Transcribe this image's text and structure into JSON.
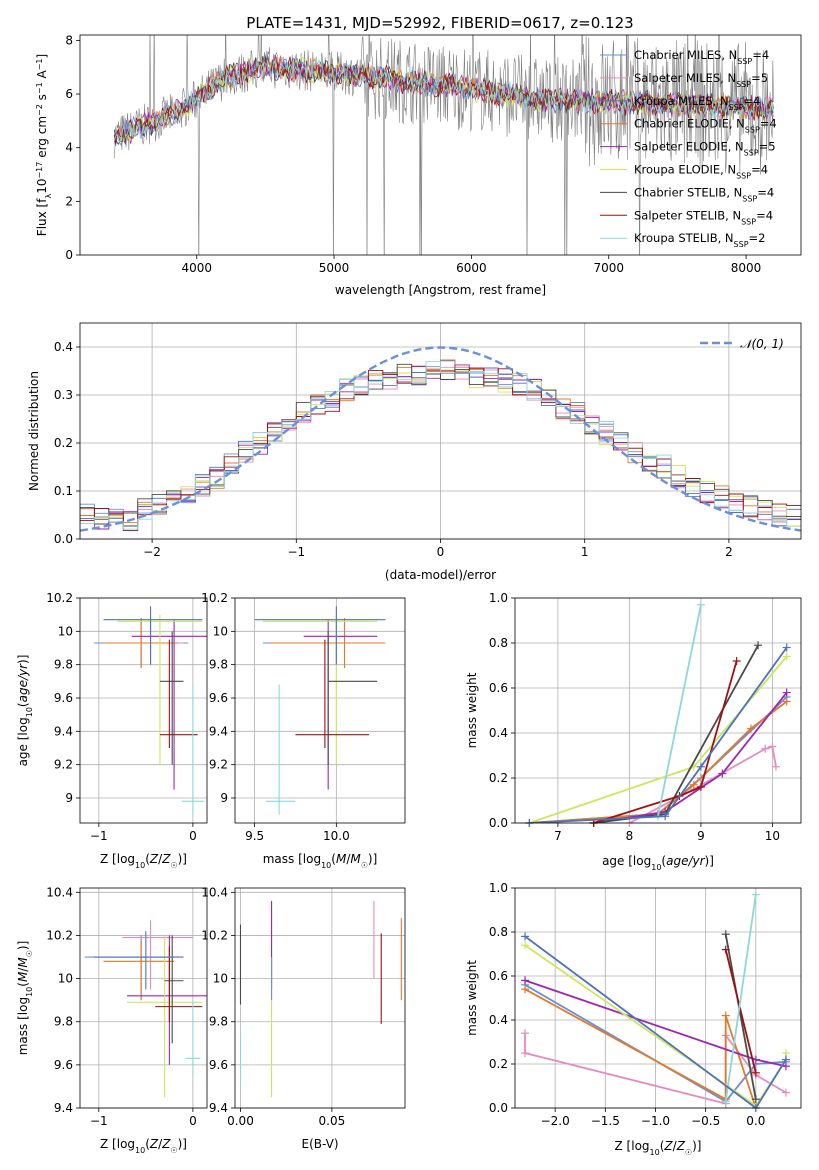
{
  "title": "PLATE=1431, MJD=52992, FIBERID=0617, z=0.123",
  "colors": {
    "Chabrier MILES": "#6a8fdc",
    "Salpeter MILES": "#e68bbd",
    "Kroupa MILES": "#4c72c0",
    "Chabrier ELODIE": "#e07b2a",
    "Salpeter ELODIE": "#9e25b5",
    "Kroupa ELODIE": "#cbe85a",
    "Chabrier STELIB": "#4a4a4a",
    "Salpeter STELIB": "#a01010",
    "Kroupa STELIB": "#8ad8de",
    "normal": "#6a8fdc",
    "data": "#7f7f7f"
  },
  "legend": [
    {
      "name": "Chabrier MILES",
      "nssp": "4"
    },
    {
      "name": "Salpeter MILES",
      "nssp": "5"
    },
    {
      "name": "Kroupa MILES",
      "nssp": "4"
    },
    {
      "name": "Chabrier ELODIE",
      "nssp": "4"
    },
    {
      "name": "Salpeter ELODIE",
      "nssp": "5"
    },
    {
      "name": "Kroupa ELODIE",
      "nssp": "4"
    },
    {
      "name": "Chabrier STELIB",
      "nssp": "4"
    },
    {
      "name": "Salpeter STELIB",
      "nssp": "4"
    },
    {
      "name": "Kroupa STELIB",
      "nssp": "2"
    }
  ],
  "chart_data": [
    {
      "id": "spectrum",
      "type": "line",
      "xlabel": "wavelength [Angstrom, rest frame]",
      "ylabel_parts": [
        "Flux [f",
        "λ",
        "10",
        "−17",
        " erg cm",
        "−2",
        " s",
        "−1",
        " A",
        "−1",
        "]"
      ],
      "xlim": [
        3150,
        8400
      ],
      "ylim": [
        0,
        8.2
      ],
      "xticks": [
        4000,
        5000,
        6000,
        7000,
        8000
      ],
      "yticks": [
        0,
        2,
        4,
        6,
        8
      ],
      "model_continuum": {
        "x": [
          3400,
          3550,
          3700,
          3850,
          4000,
          4200,
          4500,
          5000,
          5500,
          6000,
          6500,
          7000,
          7500,
          8000,
          8200
        ],
        "y": [
          4.4,
          4.7,
          5.0,
          5.3,
          5.8,
          6.6,
          7.0,
          6.8,
          6.5,
          6.2,
          5.8,
          5.7,
          5.6,
          5.5,
          5.4
        ]
      }
    },
    {
      "id": "residual-histogram",
      "type": "bar",
      "xlabel": "(data-model)/error",
      "ylabel": "Normed distribution",
      "xlim": [
        -2.5,
        2.5
      ],
      "ylim": [
        0,
        0.45
      ],
      "xticks": [
        -2,
        -1,
        0,
        1,
        2
      ],
      "xtick_labels": [
        "−2",
        "−1",
        "0",
        "1",
        "2"
      ],
      "yticks": [
        0.0,
        0.1,
        0.2,
        0.3,
        0.4
      ],
      "ytick_labels": [
        "0.0",
        "0.1",
        "0.2",
        "0.3",
        "0.4"
      ],
      "bin_edges": [
        -2.5,
        2.5
      ],
      "n_bins": 50,
      "reference_curve": "𝒩(0, 1)",
      "series_values": [
        0.05,
        0.04,
        0.05,
        0.04,
        0.06,
        0.07,
        0.08,
        0.09,
        0.11,
        0.13,
        0.16,
        0.18,
        0.2,
        0.22,
        0.24,
        0.26,
        0.28,
        0.29,
        0.31,
        0.32,
        0.33,
        0.33,
        0.34,
        0.34,
        0.35,
        0.35,
        0.35,
        0.34,
        0.34,
        0.33,
        0.32,
        0.31,
        0.29,
        0.27,
        0.26,
        0.24,
        0.22,
        0.2,
        0.18,
        0.16,
        0.15,
        0.13,
        0.11,
        0.1,
        0.09,
        0.08,
        0.07,
        0.06,
        0.05,
        0.05
      ]
    },
    {
      "id": "age-vs-z",
      "type": "scatter",
      "xlabel": "Z [log10(Z/Z☉)]",
      "ylabel": "age [log10(age/yr)]",
      "xlim": [
        -1.2,
        0.15
      ],
      "ylim": [
        8.85,
        10.2
      ],
      "xticks": [
        -1,
        0
      ],
      "xtick_labels": [
        "−1",
        "0"
      ],
      "yticks": [
        9.0,
        9.2,
        9.4,
        9.6,
        9.8,
        10.0,
        10.2
      ],
      "points": [
        {
          "s": "Chabrier MILES",
          "x": -0.55,
          "y": 9.93,
          "x0": -1.05,
          "x1": -0.05,
          "y0": 9.78,
          "y1": 10.08
        },
        {
          "s": "Salpeter MILES",
          "x": -0.45,
          "y": 9.93,
          "x0": -0.85,
          "x1": -0.1,
          "y0": 9.8,
          "y1": 10.05
        },
        {
          "s": "Chabrier ELODIE",
          "x": -0.55,
          "y": 9.93,
          "x0": -0.95,
          "x1": -0.15,
          "y0": 9.78,
          "y1": 10.08
        },
        {
          "s": "Salpeter ELODIE",
          "x": -0.2,
          "y": 9.97,
          "x0": -0.65,
          "x1": 0.25,
          "y0": 9.05,
          "y1": 10.07
        },
        {
          "s": "Kroupa ELODIE",
          "x": -0.35,
          "y": 10.06,
          "x0": -0.8,
          "x1": 0.1,
          "y0": 9.2,
          "y1": 10.1
        },
        {
          "s": "Chabrier STELIB",
          "x": -0.22,
          "y": 9.7,
          "x0": -0.35,
          "x1": -0.1,
          "y0": 9.2,
          "y1": 10.0
        },
        {
          "s": "Salpeter STELIB",
          "x": -0.25,
          "y": 9.38,
          "x0": -0.35,
          "x1": 0.05,
          "y0": 9.3,
          "y1": 9.95
        },
        {
          "s": "Kroupa STELIB",
          "x": 0.0,
          "y": 8.98,
          "x0": -0.12,
          "x1": 0.12,
          "y0": 8.9,
          "y1": 9.68
        },
        {
          "s": "Kroupa MILES",
          "x": -0.45,
          "y": 10.07,
          "x0": -0.95,
          "x1": 0.1,
          "y0": 9.8,
          "y1": 10.15
        }
      ]
    },
    {
      "id": "age-vs-mass",
      "type": "scatter",
      "xlabel": "mass [log10(M/M☉)]",
      "xlim": [
        9.38,
        10.42
      ],
      "ylim": [
        8.85,
        10.2
      ],
      "xticks": [
        9.5,
        10.0
      ],
      "xtick_labels": [
        "9.5",
        "10.0"
      ],
      "yticks": [
        9.0,
        9.2,
        9.4,
        9.6,
        9.8,
        10.0,
        10.2
      ],
      "points": [
        {
          "s": "Chabrier MILES",
          "x": 10.05,
          "y": 9.93,
          "x0": 9.55,
          "x1": 10.3,
          "y0": 9.78,
          "y1": 10.08
        },
        {
          "s": "Salpeter MILES",
          "x": 10.0,
          "y": 9.93,
          "x0": 9.7,
          "x1": 10.3,
          "y0": 9.8,
          "y1": 10.05
        },
        {
          "s": "Chabrier ELODIE",
          "x": 10.05,
          "y": 9.93,
          "x0": 9.6,
          "x1": 10.3,
          "y0": 9.78,
          "y1": 10.08
        },
        {
          "s": "Salpeter ELODIE",
          "x": 9.95,
          "y": 9.97,
          "x0": 9.8,
          "x1": 10.25,
          "y0": 9.05,
          "y1": 10.07
        },
        {
          "s": "Kroupa ELODIE",
          "x": 10.0,
          "y": 10.06,
          "x0": 9.55,
          "x1": 10.25,
          "y0": 9.2,
          "y1": 10.1
        },
        {
          "s": "Chabrier STELIB",
          "x": 9.95,
          "y": 9.7,
          "x0": 9.95,
          "x1": 10.25,
          "y0": 9.2,
          "y1": 10.0
        },
        {
          "s": "Salpeter STELIB",
          "x": 9.93,
          "y": 9.38,
          "x0": 9.75,
          "x1": 10.2,
          "y0": 9.3,
          "y1": 9.95
        },
        {
          "s": "Kroupa STELIB",
          "x": 9.65,
          "y": 8.98,
          "x0": 9.57,
          "x1": 9.75,
          "y0": 8.9,
          "y1": 9.68
        },
        {
          "s": "Kroupa MILES",
          "x": 10.0,
          "y": 10.07,
          "x0": 9.5,
          "x1": 10.3,
          "y0": 9.8,
          "y1": 10.15
        }
      ]
    },
    {
      "id": "weight-vs-age",
      "type": "line",
      "xlabel": "age [log10(age/yr)]",
      "ylabel": "mass weight",
      "xlim": [
        6.4,
        10.4
      ],
      "ylim": [
        0,
        1.0
      ],
      "xticks": [
        7,
        8,
        9,
        10
      ],
      "yticks": [
        0.0,
        0.2,
        0.4,
        0.6,
        0.8,
        1.0
      ],
      "ytick_labels": [
        "0.0",
        "0.2",
        "0.4",
        "0.6",
        "0.8",
        "1.0"
      ],
      "series": [
        {
          "name": "Chabrier MILES",
          "x": [
            6.6,
            8.4,
            9.0,
            10.2
          ],
          "y": [
            0.0,
            0.04,
            0.2,
            0.56
          ]
        },
        {
          "name": "Salpeter MILES",
          "x": [
            8.0,
            8.9,
            9.9,
            10.0,
            10.05
          ],
          "y": [
            0.0,
            0.15,
            0.33,
            0.34,
            0.25
          ]
        },
        {
          "name": "Chabrier ELODIE",
          "x": [
            6.6,
            8.4,
            8.9,
            9.7,
            10.2
          ],
          "y": [
            0.0,
            0.04,
            0.17,
            0.42,
            0.54
          ]
        },
        {
          "name": "Salpeter ELODIE",
          "x": [
            7.5,
            8.5,
            9.3,
            10.2
          ],
          "y": [
            0.0,
            0.05,
            0.22,
            0.58
          ]
        },
        {
          "name": "Kroupa ELODIE",
          "x": [
            6.6,
            8.9,
            10.2
          ],
          "y": [
            0.0,
            0.25,
            0.74
          ]
        },
        {
          "name": "Chabrier STELIB",
          "x": [
            7.5,
            8.5,
            9.8
          ],
          "y": [
            0.0,
            0.04,
            0.79
          ]
        },
        {
          "name": "Salpeter STELIB",
          "x": [
            7.5,
            8.7,
            9.0,
            9.5
          ],
          "y": [
            0.0,
            0.12,
            0.16,
            0.72
          ]
        },
        {
          "name": "Kroupa STELIB",
          "x": [
            8.4,
            9.0
          ],
          "y": [
            0.03,
            0.97
          ]
        },
        {
          "name": "Kroupa MILES",
          "x": [
            6.6,
            8.5,
            9.0,
            10.2
          ],
          "y": [
            0.0,
            0.03,
            0.25,
            0.78
          ]
        }
      ]
    },
    {
      "id": "mass-vs-z",
      "type": "scatter",
      "xlabel": "Z [log10(Z/Z☉)]",
      "ylabel": "mass [log10(M/M☉)]",
      "xlim": [
        -1.2,
        0.15
      ],
      "ylim": [
        9.4,
        10.42
      ],
      "xticks": [
        -1,
        0
      ],
      "xtick_labels": [
        "−1",
        "0"
      ],
      "yticks": [
        9.4,
        9.6,
        9.8,
        10.0,
        10.2,
        10.4
      ],
      "points": [
        {
          "s": "Chabrier MILES",
          "x": -0.55,
          "y": 10.1,
          "x0": -1.15,
          "x1": -0.2,
          "y0": 9.9,
          "y1": 10.2
        },
        {
          "s": "Salpeter MILES",
          "x": -0.45,
          "y": 10.19,
          "x0": -0.75,
          "x1": -0.0,
          "y0": 9.95,
          "y1": 10.27
        },
        {
          "s": "Chabrier ELODIE",
          "x": -0.55,
          "y": 10.08,
          "x0": -0.95,
          "x1": -0.2,
          "y0": 9.9,
          "y1": 10.18
        },
        {
          "s": "Salpeter ELODIE",
          "x": -0.25,
          "y": 9.92,
          "x0": -0.7,
          "x1": 0.15,
          "y0": 9.6,
          "y1": 10.2
        },
        {
          "s": "Kroupa ELODIE",
          "x": -0.3,
          "y": 9.89,
          "x0": -0.7,
          "x1": 0.1,
          "y0": 9.45,
          "y1": 10.2
        },
        {
          "s": "Chabrier STELIB",
          "x": -0.22,
          "y": 9.99,
          "x0": -0.3,
          "x1": -0.1,
          "y0": 9.7,
          "y1": 10.2
        },
        {
          "s": "Salpeter STELIB",
          "x": -0.25,
          "y": 9.87,
          "x0": -0.4,
          "x1": 0.1,
          "y0": 9.8,
          "y1": 10.15
        },
        {
          "s": "Kroupa STELIB",
          "x": 0.0,
          "y": 9.63,
          "x0": -0.08,
          "x1": 0.08,
          "y0": 9.55,
          "y1": 9.9
        },
        {
          "s": "Kroupa MILES",
          "x": -0.5,
          "y": 10.1,
          "x0": -1.05,
          "x1": -0.1,
          "y0": 9.95,
          "y1": 10.22
        }
      ]
    },
    {
      "id": "mass-vs-ebv",
      "type": "scatter",
      "xlabel": "E(B-V)",
      "xlim": [
        -0.003,
        0.09
      ],
      "ylim": [
        9.4,
        10.42
      ],
      "xticks": [
        0.0,
        0.05
      ],
      "xtick_labels": [
        "0.00",
        "0.05"
      ],
      "yticks": [
        9.4,
        9.6,
        9.8,
        10.0,
        10.2,
        10.4
      ],
      "points": [
        {
          "s": "Kroupa STELIB",
          "x": 0.0,
          "y": 9.63,
          "x0": 0.0,
          "x1": 0.0,
          "y0": 9.5,
          "y1": 9.75
        },
        {
          "s": "Chabrier STELIB",
          "x": 0.0,
          "y": 10.05,
          "x0": 0.0,
          "x1": 0.0,
          "y0": 9.88,
          "y1": 10.25
        },
        {
          "s": "Kroupa ELODIE",
          "x": 0.017,
          "y": 9.89,
          "x0": 0.017,
          "x1": 0.017,
          "y0": 9.45,
          "y1": 10.25
        },
        {
          "s": "Salpeter ELODIE",
          "x": 0.017,
          "y": 10.2,
          "x0": 0.017,
          "x1": 0.017,
          "y0": 9.95,
          "y1": 10.36
        },
        {
          "s": "Chabrier MILES",
          "x": 0.017,
          "y": 10.0,
          "x0": 0.017,
          "x1": 0.017,
          "y0": 9.9,
          "y1": 10.1
        },
        {
          "s": "Salpeter MILES",
          "x": 0.073,
          "y": 10.19,
          "x0": 0.073,
          "x1": 0.073,
          "y0": 10.0,
          "y1": 10.36
        },
        {
          "s": "Salpeter STELIB",
          "x": 0.077,
          "y": 10.0,
          "x0": 0.077,
          "x1": 0.077,
          "y0": 9.79,
          "y1": 10.21
        },
        {
          "s": "Chabrier ELODIE",
          "x": 0.088,
          "y": 10.08,
          "x0": 0.088,
          "x1": 0.088,
          "y0": 9.9,
          "y1": 10.28
        }
      ]
    },
    {
      "id": "weight-vs-z",
      "type": "line",
      "xlabel": "Z [log10(Z/Z☉)]",
      "ylabel": "mass weight",
      "xlim": [
        -2.4,
        0.45
      ],
      "ylim": [
        0,
        1.0
      ],
      "xticks": [
        -2.0,
        -1.5,
        -1.0,
        -0.5,
        0.0
      ],
      "xtick_labels": [
        "−2.0",
        "−1.5",
        "−1.0",
        "−0.5",
        "0.0"
      ],
      "yticks": [
        0.0,
        0.2,
        0.4,
        0.6,
        0.8,
        1.0
      ],
      "ytick_labels": [
        "0.0",
        "0.2",
        "0.4",
        "0.6",
        "0.8",
        "1.0"
      ],
      "series": [
        {
          "name": "Chabrier MILES",
          "x": [
            -2.3,
            -0.3,
            0.0,
            0.3
          ],
          "y": [
            0.56,
            0.03,
            0.2,
            0.21
          ]
        },
        {
          "name": "Salpeter MILES",
          "x": [
            -2.3,
            -2.3,
            -0.3,
            -0.3,
            0.0,
            0.3
          ],
          "y": [
            0.34,
            0.25,
            0.02,
            0.33,
            0.15,
            0.07
          ]
        },
        {
          "name": "Chabrier ELODIE",
          "x": [
            -2.3,
            -0.3,
            -0.3,
            0.0
          ],
          "y": [
            0.54,
            0.04,
            0.42,
            0.0
          ]
        },
        {
          "name": "Salpeter ELODIE",
          "x": [
            -2.3,
            0.0,
            0.3
          ],
          "y": [
            0.58,
            0.22,
            0.19
          ]
        },
        {
          "name": "Kroupa ELODIE",
          "x": [
            -2.3,
            0.0,
            0.3,
            0.3
          ],
          "y": [
            0.74,
            0.01,
            0.22,
            0.25
          ]
        },
        {
          "name": "Chabrier STELIB",
          "x": [
            -0.3,
            0.0
          ],
          "y": [
            0.79,
            0.04
          ]
        },
        {
          "name": "Salpeter STELIB",
          "x": [
            -0.3,
            0.0
          ],
          "y": [
            0.72,
            0.16
          ]
        },
        {
          "name": "Kroupa STELIB",
          "x": [
            -0.3,
            0.0
          ],
          "y": [
            0.03,
            0.97
          ]
        },
        {
          "name": "Kroupa MILES",
          "x": [
            -2.3,
            0.0,
            0.3
          ],
          "y": [
            0.78,
            0.0,
            0.22
          ]
        }
      ]
    }
  ]
}
